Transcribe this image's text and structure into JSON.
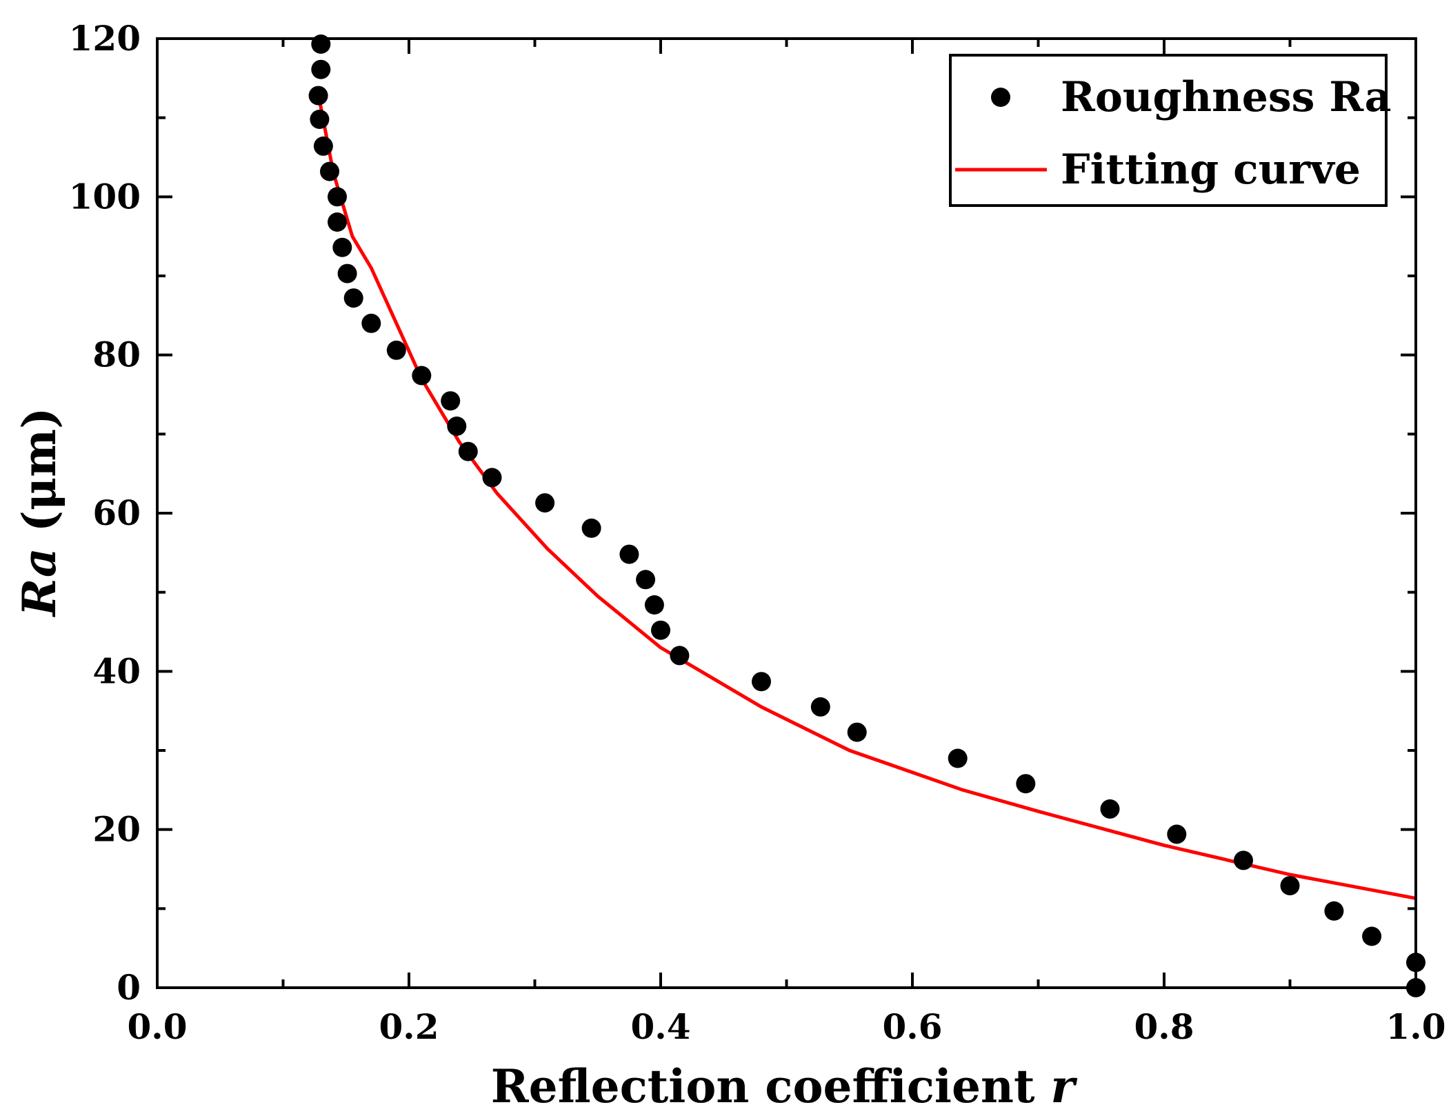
{
  "chart_data": {
    "type": "scatter",
    "xlabel": {
      "main": "Reflection  coefficient ",
      "var": "r"
    },
    "ylabel": {
      "var": "Ra",
      "unit": " (μm)"
    },
    "xlim": [
      0.0,
      1.0
    ],
    "ylim": [
      0,
      120
    ],
    "x_ticks": [
      "0.0",
      "0.2",
      "0.4",
      "0.6",
      "0.8",
      "1.0"
    ],
    "y_ticks": [
      "0",
      "20",
      "40",
      "60",
      "80",
      "100",
      "120"
    ],
    "grid": false,
    "legend_position": "top-right",
    "series": [
      {
        "name": "Roughness Ra",
        "kind": "scatter",
        "color": "#000000",
        "points": [
          [
            0.13,
            119.3
          ],
          [
            0.13,
            116.1
          ],
          [
            0.128,
            112.8
          ],
          [
            0.129,
            109.8
          ],
          [
            0.132,
            106.4
          ],
          [
            0.137,
            103.2
          ],
          [
            0.143,
            100.0
          ],
          [
            0.143,
            96.8
          ],
          [
            0.147,
            93.6
          ],
          [
            0.151,
            90.3
          ],
          [
            0.156,
            87.2
          ],
          [
            0.17,
            84.0
          ],
          [
            0.19,
            80.6
          ],
          [
            0.21,
            77.4
          ],
          [
            0.233,
            74.2
          ],
          [
            0.238,
            71.0
          ],
          [
            0.247,
            67.8
          ],
          [
            0.266,
            64.5
          ],
          [
            0.308,
            61.3
          ],
          [
            0.345,
            58.1
          ],
          [
            0.375,
            54.8
          ],
          [
            0.388,
            51.6
          ],
          [
            0.395,
            48.4
          ],
          [
            0.4,
            45.2
          ],
          [
            0.415,
            42.0
          ],
          [
            0.48,
            38.7
          ],
          [
            0.527,
            35.5
          ],
          [
            0.556,
            32.3
          ],
          [
            0.636,
            29.0
          ],
          [
            0.69,
            25.8
          ],
          [
            0.757,
            22.6
          ],
          [
            0.81,
            19.4
          ],
          [
            0.863,
            16.1
          ],
          [
            0.9,
            12.9
          ],
          [
            0.935,
            9.7
          ],
          [
            0.965,
            6.5
          ],
          [
            1.0,
            3.2
          ],
          [
            1.0,
            0.0
          ]
        ]
      },
      {
        "name": "Fitting curve",
        "kind": "line",
        "color": "#ff0000",
        "points": [
          [
            0.128,
            113.0
          ],
          [
            0.14,
            103.0
          ],
          [
            0.155,
            95.0
          ],
          [
            0.17,
            91.0
          ],
          [
            0.19,
            84.0
          ],
          [
            0.21,
            77.0
          ],
          [
            0.24,
            69.0
          ],
          [
            0.27,
            62.5
          ],
          [
            0.31,
            55.5
          ],
          [
            0.35,
            49.5
          ],
          [
            0.4,
            43.0
          ],
          [
            0.48,
            35.5
          ],
          [
            0.55,
            30.0
          ],
          [
            0.64,
            25.0
          ],
          [
            0.7,
            22.3
          ],
          [
            0.8,
            18.0
          ],
          [
            0.9,
            14.3
          ],
          [
            1.0,
            11.3
          ]
        ]
      }
    ]
  }
}
